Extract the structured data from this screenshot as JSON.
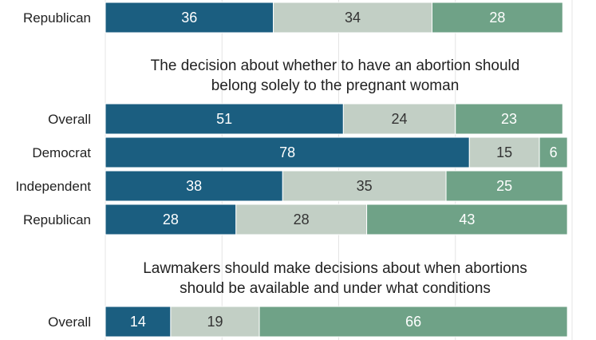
{
  "chart_data": {
    "type": "bar",
    "orientation": "horizontal",
    "stacked": true,
    "xlim": [
      0,
      100
    ],
    "grid": true,
    "colors": [
      "#1b5e80",
      "#c2cfc5",
      "#6fa287"
    ],
    "label_colors": [
      "#ffffff",
      "#333333",
      "#ffffff"
    ],
    "panels": [
      {
        "title": "",
        "rows": [
          {
            "category": "Republican",
            "values": [
              36,
              34,
              28
            ]
          }
        ]
      },
      {
        "title": "The decision about whether to have an abortion should belong solely to the pregnant woman",
        "title_lines": [
          "The decision about whether to have an abortion should",
          "belong solely to the pregnant woman"
        ],
        "rows": [
          {
            "category": "Overall",
            "values": [
              51,
              24,
              23
            ]
          },
          {
            "category": "Democrat",
            "values": [
              78,
              15,
              6
            ]
          },
          {
            "category": "Independent",
            "values": [
              38,
              35,
              25
            ]
          },
          {
            "category": "Republican",
            "values": [
              28,
              28,
              43
            ]
          }
        ]
      },
      {
        "title": "Lawmakers should make decisions about when abortions should be available and under what conditions",
        "title_lines": [
          "Lawmakers should make decisions about when abortions",
          "should be available and under what conditions"
        ],
        "rows": [
          {
            "category": "Overall",
            "values": [
              14,
              19,
              66
            ]
          }
        ]
      }
    ]
  }
}
